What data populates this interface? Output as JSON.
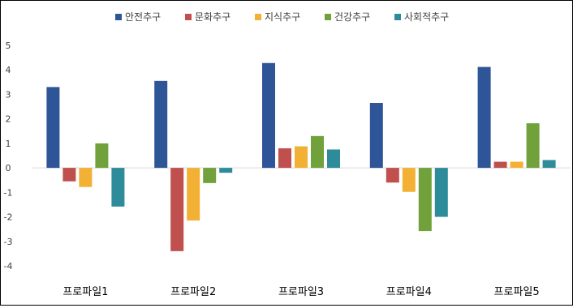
{
  "chart_data": {
    "type": "bar",
    "categories": [
      "프로파일1",
      "프로파일2",
      "프로파일3",
      "프로파일4",
      "프로파일5"
    ],
    "series": [
      {
        "name": "안전추구",
        "color": "#2e5597",
        "values": [
          3.3,
          3.55,
          4.28,
          2.65,
          4.12
        ]
      },
      {
        "name": "문화추구",
        "color": "#c0504d",
        "values": [
          -0.55,
          -3.4,
          0.8,
          -0.6,
          0.25
        ]
      },
      {
        "name": "지식추구",
        "color": "#f2b135",
        "values": [
          -0.78,
          -2.15,
          0.88,
          -0.98,
          0.25
        ]
      },
      {
        "name": "건강추구",
        "color": "#70a13a",
        "values": [
          1.0,
          -0.62,
          1.3,
          -2.58,
          1.82
        ]
      },
      {
        "name": "사회적추구",
        "color": "#2e8b9a",
        "values": [
          -1.58,
          -0.2,
          0.75,
          -2.0,
          0.32
        ]
      }
    ],
    "ylim": [
      -4,
      5
    ],
    "yticks": [
      -4,
      -3,
      -2,
      -1,
      0,
      1,
      2,
      3,
      4,
      5
    ],
    "grid": false,
    "legend": "top"
  }
}
